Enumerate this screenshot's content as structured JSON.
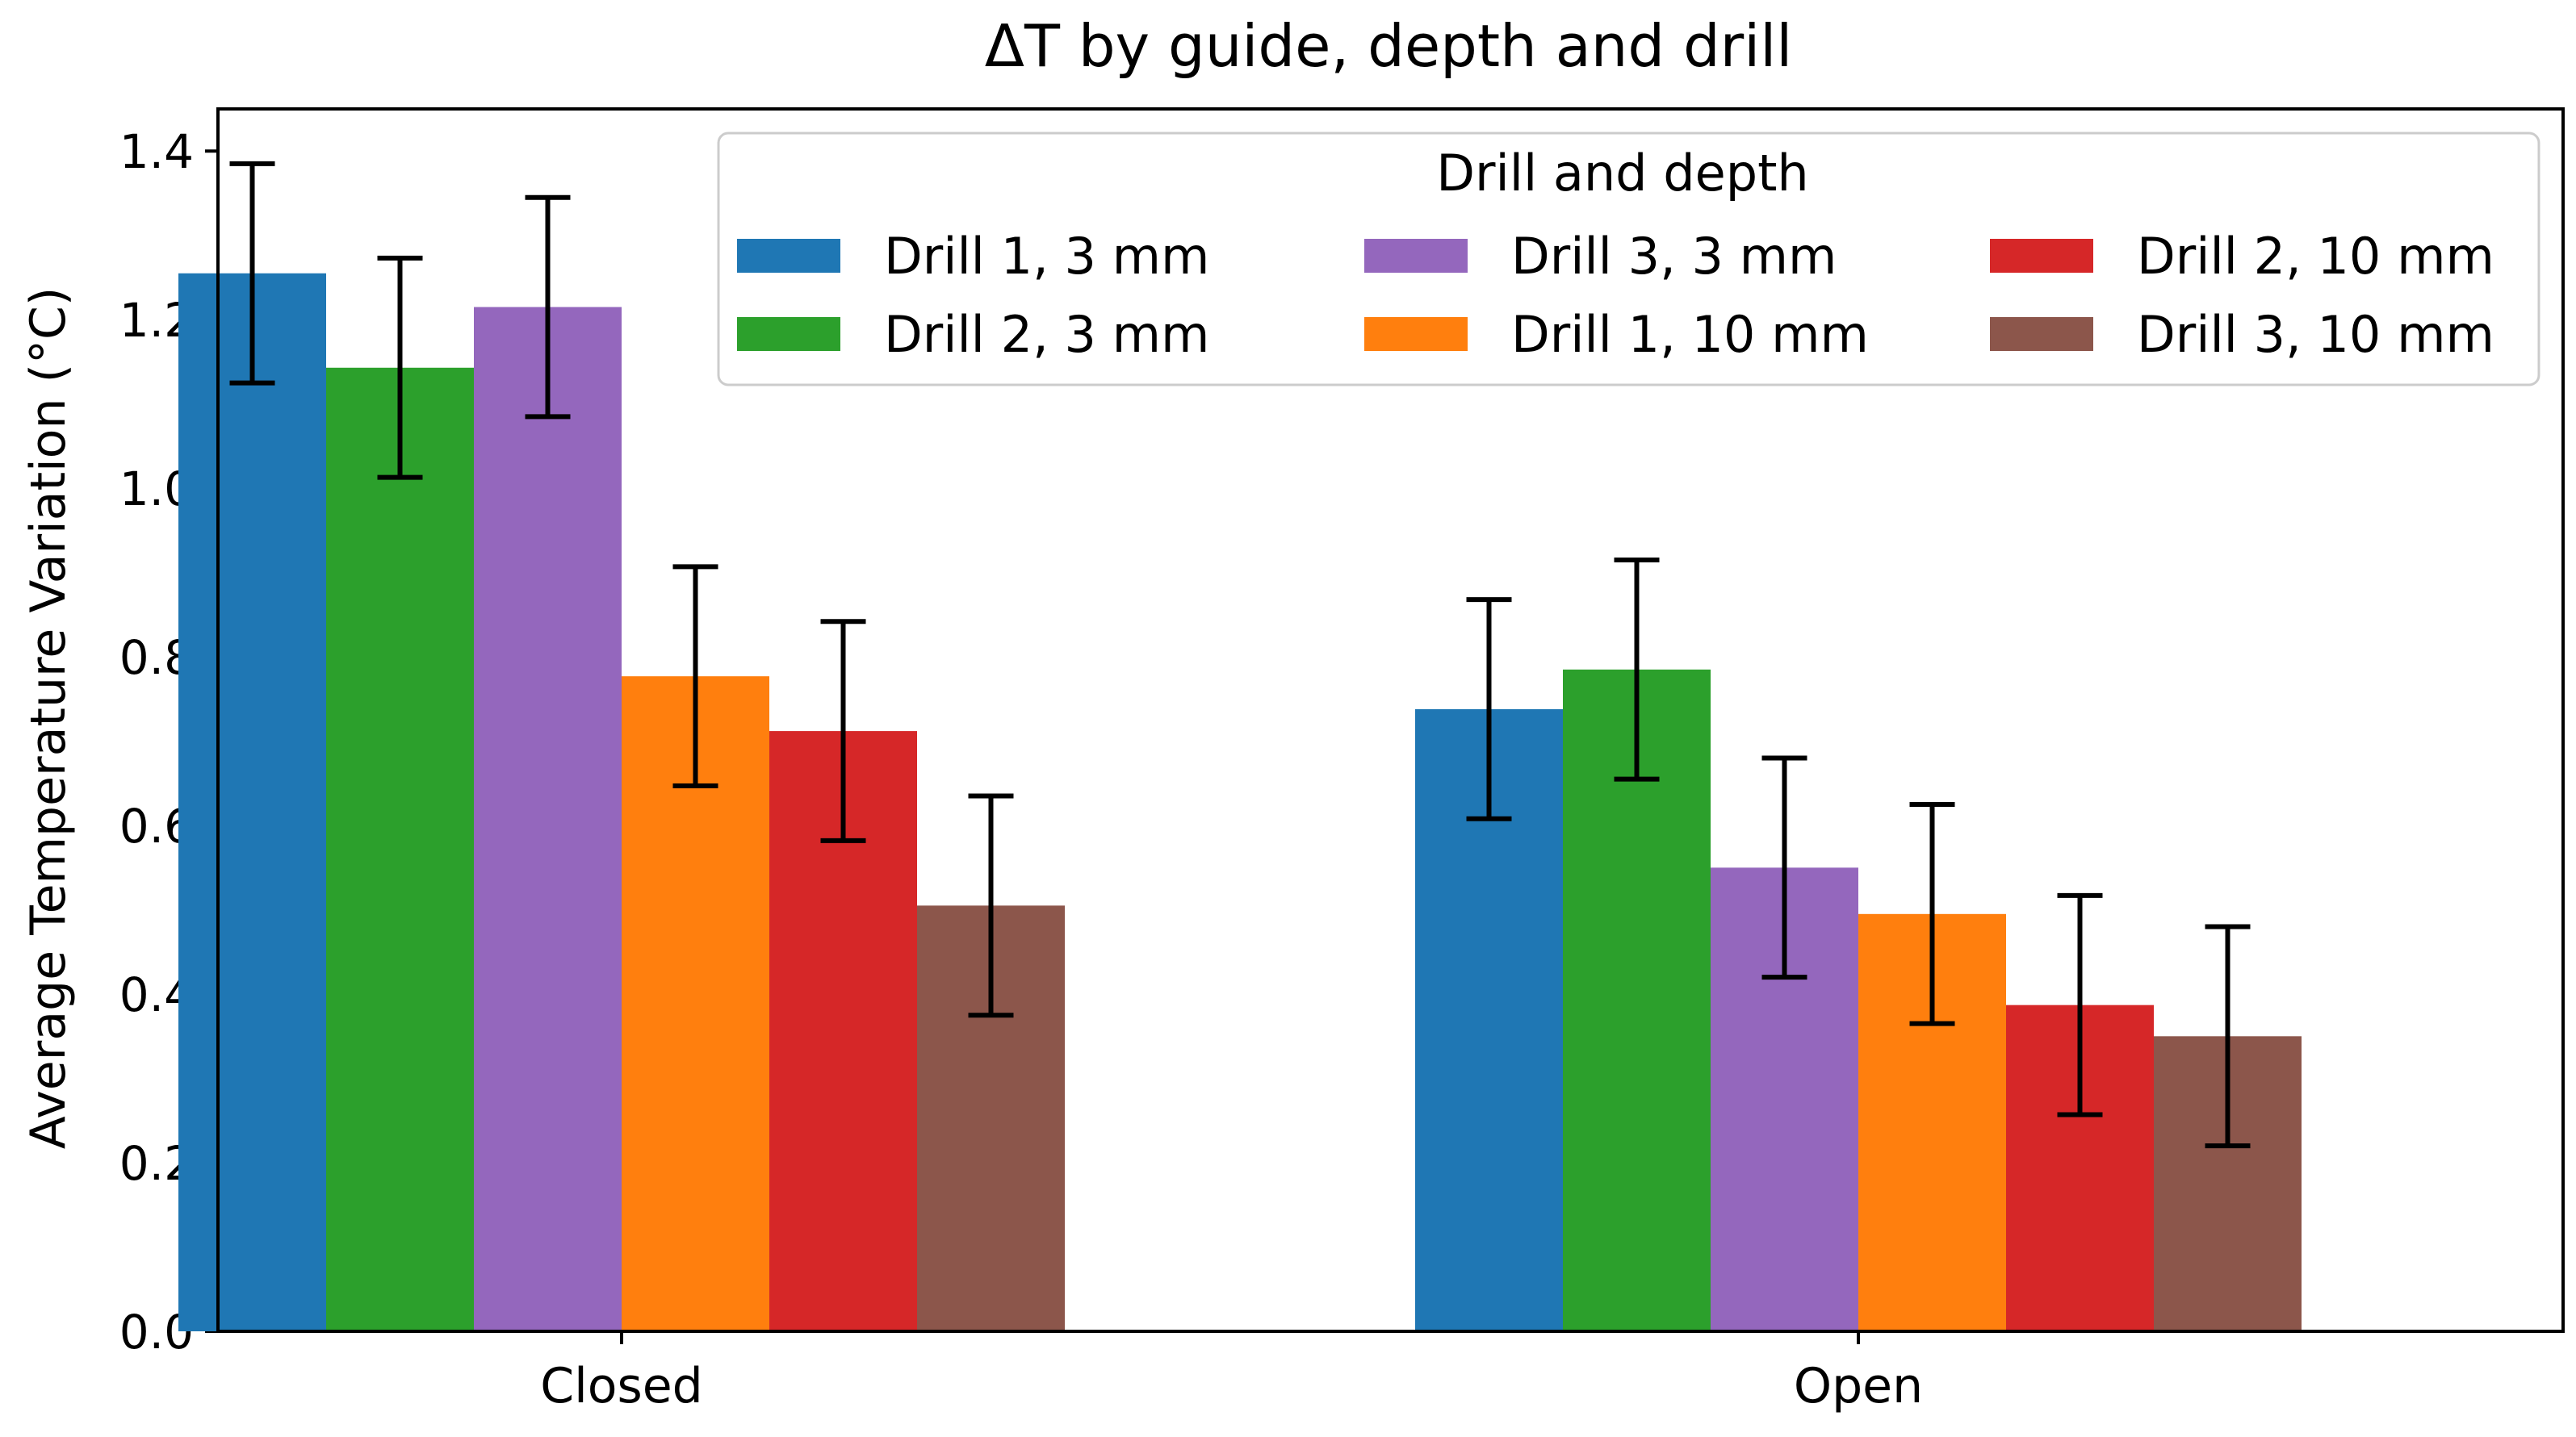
{
  "chart_data": {
    "type": "bar",
    "title": "ΔT by guide, depth and drill",
    "xlabel": "",
    "ylabel": "Average Temperature Variation (°C)",
    "ylim": [
      0,
      1.45
    ],
    "yticks": [
      "0.0",
      "0.2",
      "0.4",
      "0.6",
      "0.8",
      "1.0",
      "1.2",
      "1.4"
    ],
    "categories": [
      "Closed",
      "Open"
    ],
    "error_bars": true,
    "legend_title": "Drill and depth",
    "legend_position": "top-right",
    "legend_columns": 3,
    "series": [
      {
        "name": "Drill 1, 3 mm",
        "color": "#1f77b4",
        "values": [
          1.255,
          0.738
        ],
        "errors": [
          0.13,
          0.13
        ]
      },
      {
        "name": "Drill 2, 3 mm",
        "color": "#2ca02c",
        "values": [
          1.143,
          0.785
        ],
        "errors": [
          0.13,
          0.13
        ]
      },
      {
        "name": "Drill 3, 3 mm",
        "color": "#9467bd",
        "values": [
          1.215,
          0.55
        ],
        "errors": [
          0.13,
          0.13
        ]
      },
      {
        "name": "Drill 1, 10 mm",
        "color": "#ff7f0e",
        "values": [
          0.777,
          0.495
        ],
        "errors": [
          0.13,
          0.13
        ]
      },
      {
        "name": "Drill 2, 10 mm",
        "color": "#d62728",
        "values": [
          0.712,
          0.387
        ],
        "errors": [
          0.13,
          0.13
        ]
      },
      {
        "name": "Drill 3, 10 mm",
        "color": "#8c564b",
        "values": [
          0.505,
          0.35
        ],
        "errors": [
          0.13,
          0.13
        ]
      }
    ]
  }
}
